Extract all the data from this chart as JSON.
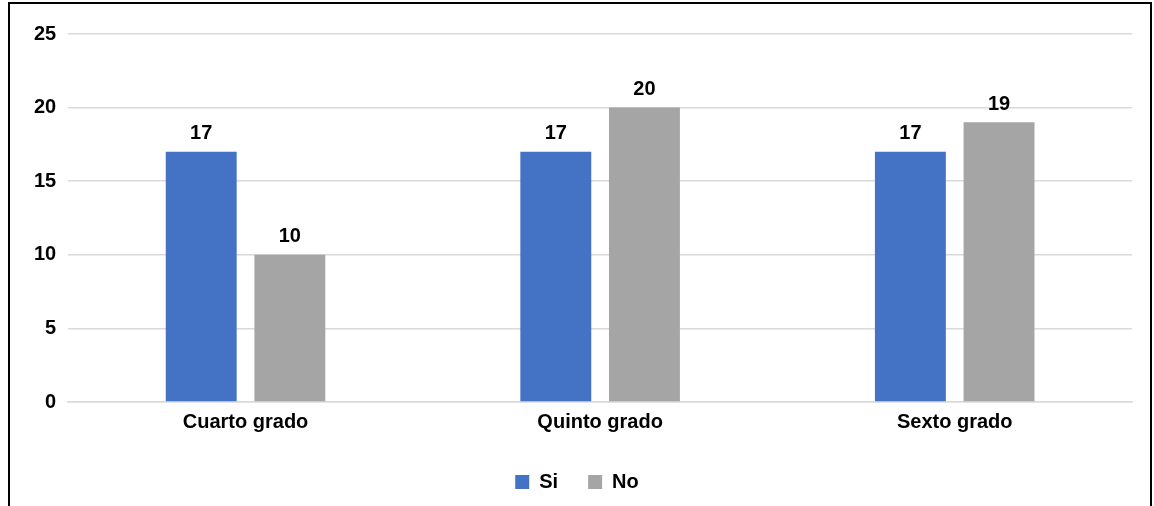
{
  "chart_data": {
    "type": "bar",
    "categories": [
      "Cuarto grado",
      "Quinto grado",
      "Sexto grado"
    ],
    "series": [
      {
        "name": "Si",
        "color": "#4472c4",
        "values": [
          17,
          17,
          17
        ]
      },
      {
        "name": "No",
        "color": "#a5a5a5",
        "values": [
          10,
          20,
          19
        ]
      }
    ],
    "ylim": [
      0,
      25
    ],
    "yticks": [
      0,
      5,
      10,
      15,
      20,
      25
    ],
    "grid": "y",
    "legend": "bottom",
    "data_labels": true
  }
}
